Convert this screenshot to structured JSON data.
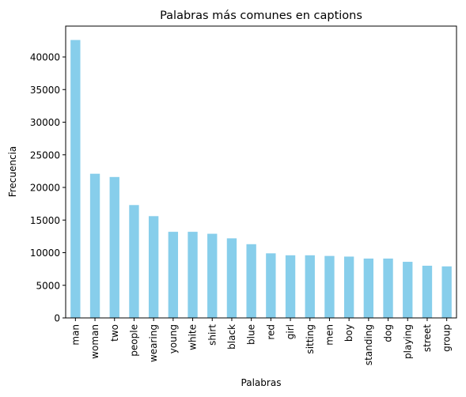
{
  "chart_data": {
    "type": "bar",
    "title": "Palabras más comunes en captions",
    "xlabel": "Palabras",
    "ylabel": "Frecuencia",
    "categories": [
      "man",
      "woman",
      "two",
      "people",
      "wearing",
      "young",
      "white",
      "shirt",
      "black",
      "blue",
      "red",
      "girl",
      "sitting",
      "men",
      "boy",
      "standing",
      "dog",
      "playing",
      "street",
      "group"
    ],
    "values": [
      42600,
      22100,
      21600,
      17300,
      15600,
      13200,
      13200,
      12900,
      12200,
      11300,
      9900,
      9600,
      9600,
      9500,
      9400,
      9100,
      9100,
      8600,
      8000,
      7900
    ],
    "yticks": [
      0,
      5000,
      10000,
      15000,
      20000,
      25000,
      30000,
      35000,
      40000
    ],
    "ylim": [
      0,
      44730
    ],
    "bar_color": "#87ceeb",
    "grid": false,
    "legend": "none"
  }
}
